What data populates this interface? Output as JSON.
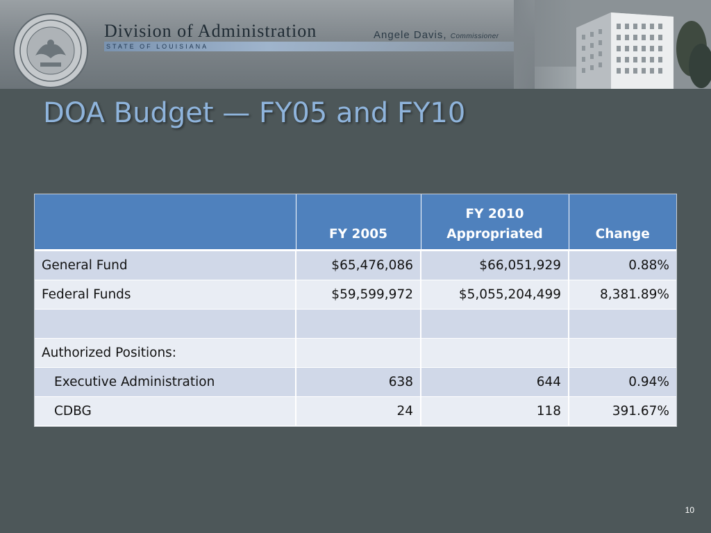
{
  "banner": {
    "division_title": "Division of Administration",
    "commissioner_name": "Angele Davis,",
    "commissioner_role": "Commissioner",
    "state_label": "STATE OF LOUISIANA",
    "seal_alt": "seal-icon",
    "building_alt": "building-icon"
  },
  "slide": {
    "title": "DOA Budget — FY05 and FY10",
    "page_number": "10"
  },
  "table": {
    "headers": {
      "label": "",
      "fy2005": "FY 2005",
      "fy2010_line1": "FY 2010",
      "fy2010_line2": "Appropriated",
      "change": "Change"
    },
    "rows": [
      {
        "label": "General Fund",
        "fy2005": "$65,476,086",
        "fy2010": "$66,051,929",
        "change": "0.88%"
      },
      {
        "label": "Federal Funds",
        "fy2005": "$59,599,972",
        "fy2010": "$5,055,204,499",
        "change": "8,381.89%"
      },
      {
        "label": "",
        "fy2005": "",
        "fy2010": "",
        "change": ""
      },
      {
        "label": "Authorized Positions:",
        "fy2005": "",
        "fy2010": "",
        "change": ""
      },
      {
        "label": "Executive Administration",
        "fy2005": "638",
        "fy2010": "644",
        "change": "0.94%"
      },
      {
        "label": "CDBG",
        "fy2005": "24",
        "fy2010": "118",
        "change": "391.67%"
      }
    ]
  },
  "colors": {
    "background": "#4d5759",
    "title": "#8fb4dc",
    "header": "#4f81bd",
    "row_band_dark": "#d0d8e8",
    "row_band_light": "#e9edf4"
  }
}
